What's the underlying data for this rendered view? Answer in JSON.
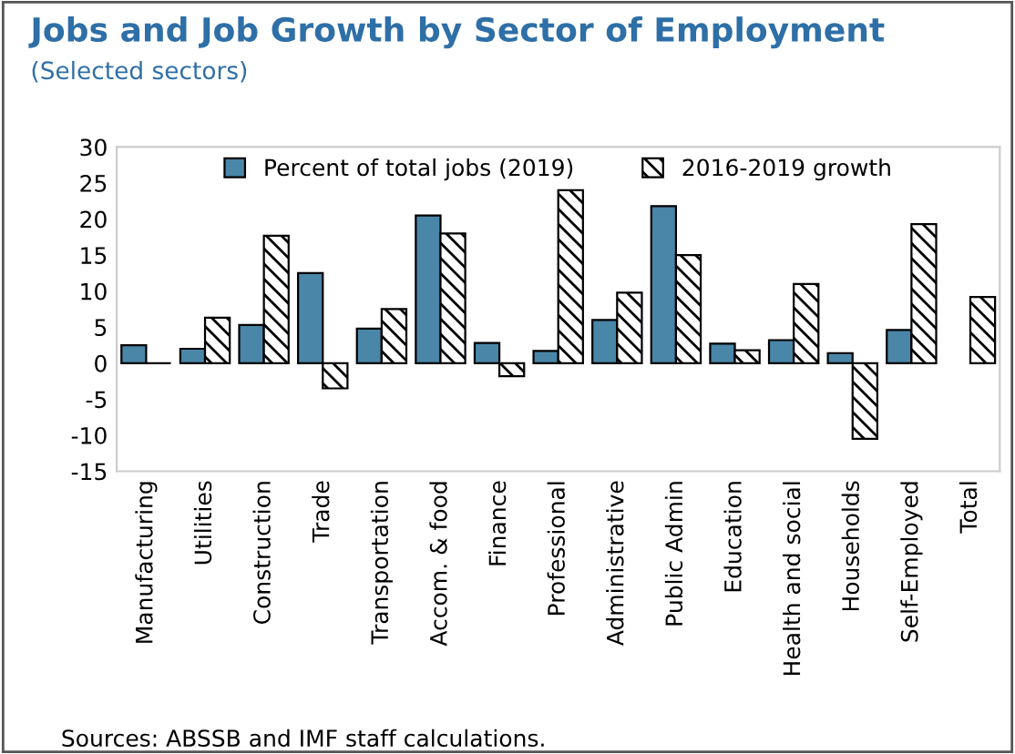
{
  "chart_data": {
    "type": "bar",
    "title": "Jobs and Job Growth by Sector of Employment",
    "subtitle": "(Selected sectors)",
    "categories": [
      "Manufacturing",
      "Utilities",
      "Construction",
      "Trade",
      "Transportation",
      "Accom. & food",
      "Finance",
      "Professional",
      "Administrative",
      "Public Admin",
      "Education",
      "Health and social",
      "Households",
      "Self-Employed",
      "Total"
    ],
    "series": [
      {
        "name": "Percent of total jobs (2019)",
        "color": "#4a86a8",
        "values": [
          2.5,
          2,
          5.3,
          12.5,
          4.8,
          20.5,
          2.8,
          1.7,
          6,
          21.8,
          2.7,
          3.2,
          1.4,
          4.6,
          null
        ]
      },
      {
        "name": "2016-2019 growth",
        "color": "#000000",
        "values": [
          0,
          6.3,
          17.7,
          -3.5,
          7.5,
          18,
          -1.8,
          24,
          9.8,
          15,
          1.8,
          11,
          -10.5,
          19.3,
          9.2
        ]
      }
    ],
    "ylim": [
      -15,
      30
    ],
    "yticks": [
      -15,
      -10,
      -5,
      0,
      5,
      10,
      15,
      20,
      25,
      30
    ],
    "grid": false,
    "legend": "top",
    "annotations": [
      "Sources: ABSSB and IMF staff calculations."
    ]
  }
}
